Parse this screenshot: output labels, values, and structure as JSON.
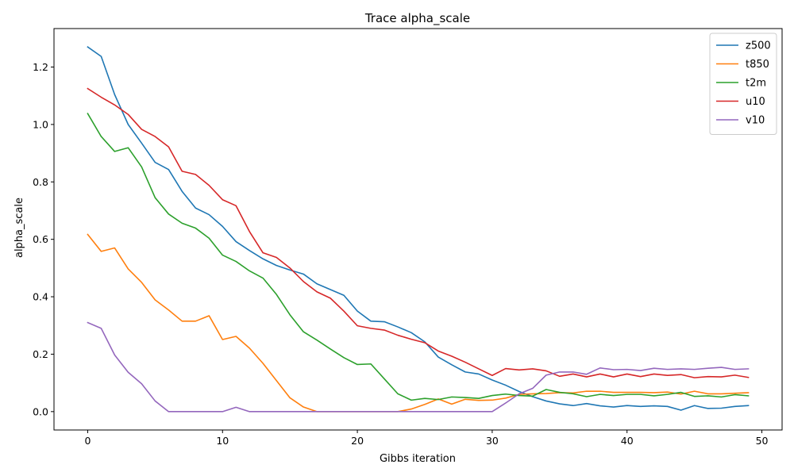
{
  "chart_data": {
    "type": "line",
    "title": "Trace alpha_scale",
    "xlabel": "Gibbs iteration",
    "ylabel": "alpha_scale",
    "xlim": [
      -2.5,
      51.5
    ],
    "ylim": [
      -0.064,
      1.334
    ],
    "xticks": [
      0,
      10,
      20,
      30,
      40,
      50
    ],
    "yticks": [
      0.0,
      0.2,
      0.4,
      0.6,
      0.8,
      1.0,
      1.2
    ],
    "grid": false,
    "legend_position": "top-right",
    "x": [
      0,
      1,
      2,
      3,
      4,
      5,
      6,
      7,
      8,
      9,
      10,
      11,
      12,
      13,
      14,
      15,
      16,
      17,
      18,
      19,
      20,
      21,
      22,
      23,
      24,
      25,
      26,
      27,
      28,
      29,
      30,
      31,
      32,
      33,
      34,
      35,
      36,
      37,
      38,
      39,
      40,
      41,
      42,
      43,
      44,
      45,
      46,
      47,
      48,
      49
    ],
    "series": [
      {
        "name": "z500",
        "color": "#1f77b4",
        "values": [
          1.27,
          1.237,
          1.104,
          1.0,
          0.935,
          0.868,
          0.843,
          0.767,
          0.709,
          0.686,
          0.645,
          0.592,
          0.561,
          0.532,
          0.509,
          0.493,
          0.479,
          0.445,
          0.425,
          0.405,
          0.35,
          0.315,
          0.313,
          0.295,
          0.275,
          0.243,
          0.19,
          0.163,
          0.138,
          0.131,
          0.11,
          0.092,
          0.07,
          0.052,
          0.037,
          0.027,
          0.021,
          0.028,
          0.02,
          0.016,
          0.021,
          0.018,
          0.02,
          0.018,
          0.005,
          0.021,
          0.011,
          0.012,
          0.018,
          0.021
        ]
      },
      {
        "name": "t850",
        "color": "#ff7f0e",
        "values": [
          0.617,
          0.558,
          0.57,
          0.497,
          0.45,
          0.389,
          0.354,
          0.315,
          0.315,
          0.334,
          0.251,
          0.262,
          0.221,
          0.168,
          0.108,
          0.048,
          0.016,
          0.0,
          0.0,
          0.0,
          0.0,
          0.0,
          0.0,
          0.0,
          0.009,
          0.025,
          0.044,
          0.026,
          0.043,
          0.039,
          0.04,
          0.047,
          0.06,
          0.062,
          0.063,
          0.066,
          0.065,
          0.071,
          0.071,
          0.067,
          0.067,
          0.067,
          0.066,
          0.068,
          0.061,
          0.071,
          0.062,
          0.062,
          0.064,
          0.066
        ]
      },
      {
        "name": "t2m",
        "color": "#2ca02c",
        "values": [
          1.038,
          0.958,
          0.906,
          0.919,
          0.852,
          0.745,
          0.688,
          0.656,
          0.639,
          0.604,
          0.545,
          0.523,
          0.49,
          0.465,
          0.408,
          0.337,
          0.278,
          0.249,
          0.218,
          0.188,
          0.164,
          0.166,
          0.114,
          0.062,
          0.04,
          0.046,
          0.042,
          0.051,
          0.049,
          0.046,
          0.056,
          0.061,
          0.056,
          0.054,
          0.077,
          0.067,
          0.062,
          0.052,
          0.06,
          0.056,
          0.06,
          0.06,
          0.055,
          0.06,
          0.067,
          0.053,
          0.055,
          0.051,
          0.059,
          0.055
        ]
      },
      {
        "name": "u10",
        "color": "#d62728",
        "values": [
          1.125,
          1.095,
          1.068,
          1.035,
          0.983,
          0.958,
          0.922,
          0.837,
          0.826,
          0.788,
          0.738,
          0.717,
          0.627,
          0.553,
          0.537,
          0.5,
          0.453,
          0.417,
          0.395,
          0.35,
          0.299,
          0.29,
          0.284,
          0.266,
          0.252,
          0.24,
          0.211,
          0.193,
          0.172,
          0.149,
          0.126,
          0.15,
          0.145,
          0.149,
          0.142,
          0.123,
          0.131,
          0.121,
          0.131,
          0.121,
          0.131,
          0.122,
          0.131,
          0.126,
          0.129,
          0.118,
          0.122,
          0.121,
          0.127,
          0.119
        ]
      },
      {
        "name": "v10",
        "color": "#9467bd",
        "values": [
          0.31,
          0.29,
          0.197,
          0.137,
          0.097,
          0.037,
          0.0,
          0.0,
          0.0,
          0.0,
          0.0,
          0.015,
          0.0,
          0.0,
          0.0,
          0.0,
          0.0,
          0.0,
          0.0,
          0.0,
          0.0,
          0.0,
          0.0,
          0.0,
          0.0,
          0.0,
          0.0,
          0.0,
          0.0,
          0.0,
          0.0,
          0.03,
          0.062,
          0.081,
          0.127,
          0.138,
          0.138,
          0.13,
          0.152,
          0.146,
          0.147,
          0.143,
          0.151,
          0.147,
          0.149,
          0.147,
          0.151,
          0.154,
          0.147,
          0.149
        ]
      }
    ]
  }
}
